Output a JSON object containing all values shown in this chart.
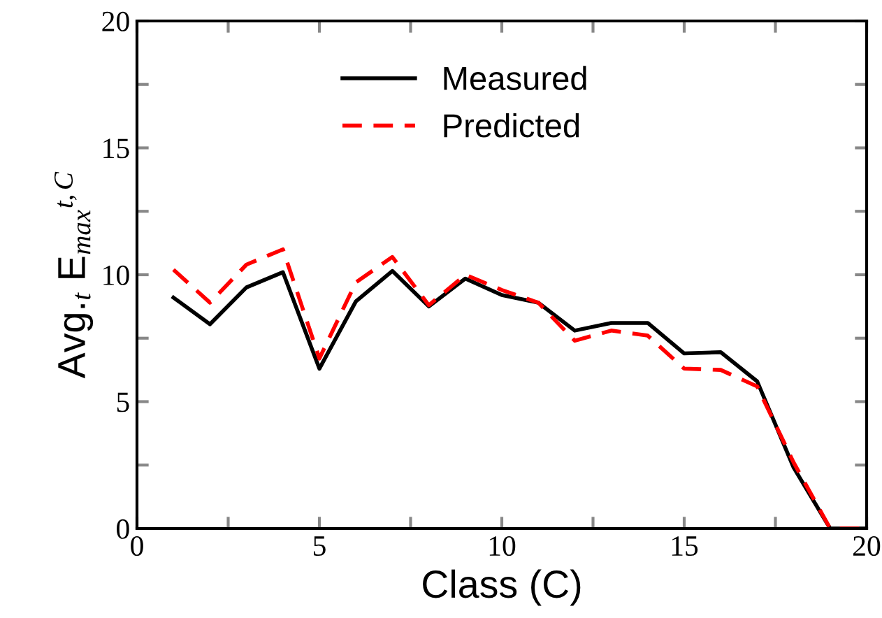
{
  "chart_data": {
    "type": "line",
    "xlabel": "Class (C)",
    "ylabel": "Avg.$_{t}$ E$_{max}$$^{t,C}$",
    "x": [
      1,
      2,
      3,
      4,
      5,
      6,
      7,
      8,
      9,
      10,
      11,
      12,
      13,
      14,
      15,
      16,
      17,
      18,
      19,
      20
    ],
    "series": [
      {
        "name": "Measured",
        "color": "#000000",
        "line_style": "solid",
        "values": [
          9.1,
          8.05,
          9.5,
          10.1,
          6.3,
          8.95,
          10.15,
          8.75,
          9.85,
          9.2,
          8.9,
          7.8,
          8.1,
          8.1,
          6.9,
          6.95,
          5.8,
          2.4,
          0,
          0
        ]
      },
      {
        "name": "Predicted",
        "color": "#ff0000",
        "line_style": "dashed",
        "values": [
          10.2,
          8.9,
          10.4,
          11.0,
          6.7,
          9.7,
          10.7,
          8.8,
          10.0,
          9.4,
          8.9,
          7.4,
          7.8,
          7.6,
          6.3,
          6.25,
          5.6,
          2.6,
          0,
          0
        ]
      }
    ],
    "xlim": [
      0,
      20
    ],
    "ylim": [
      0,
      20
    ],
    "xticks": [
      0,
      {
        "value": 2.5,
        "label": null
      },
      5,
      {
        "value": 7.5,
        "label": null
      },
      10,
      {
        "value": 12.5,
        "label": null
      },
      15,
      {
        "value": 17.5,
        "label": null
      },
      20
    ],
    "yticks": [
      0,
      {
        "value": 2.5,
        "label": null
      },
      5,
      {
        "value": 7.5,
        "label": null
      },
      10,
      {
        "value": 12.5,
        "label": null
      },
      15,
      {
        "value": 17.5,
        "label": null
      },
      20
    ],
    "grid": false,
    "legend": "top",
    "marker": "none"
  }
}
